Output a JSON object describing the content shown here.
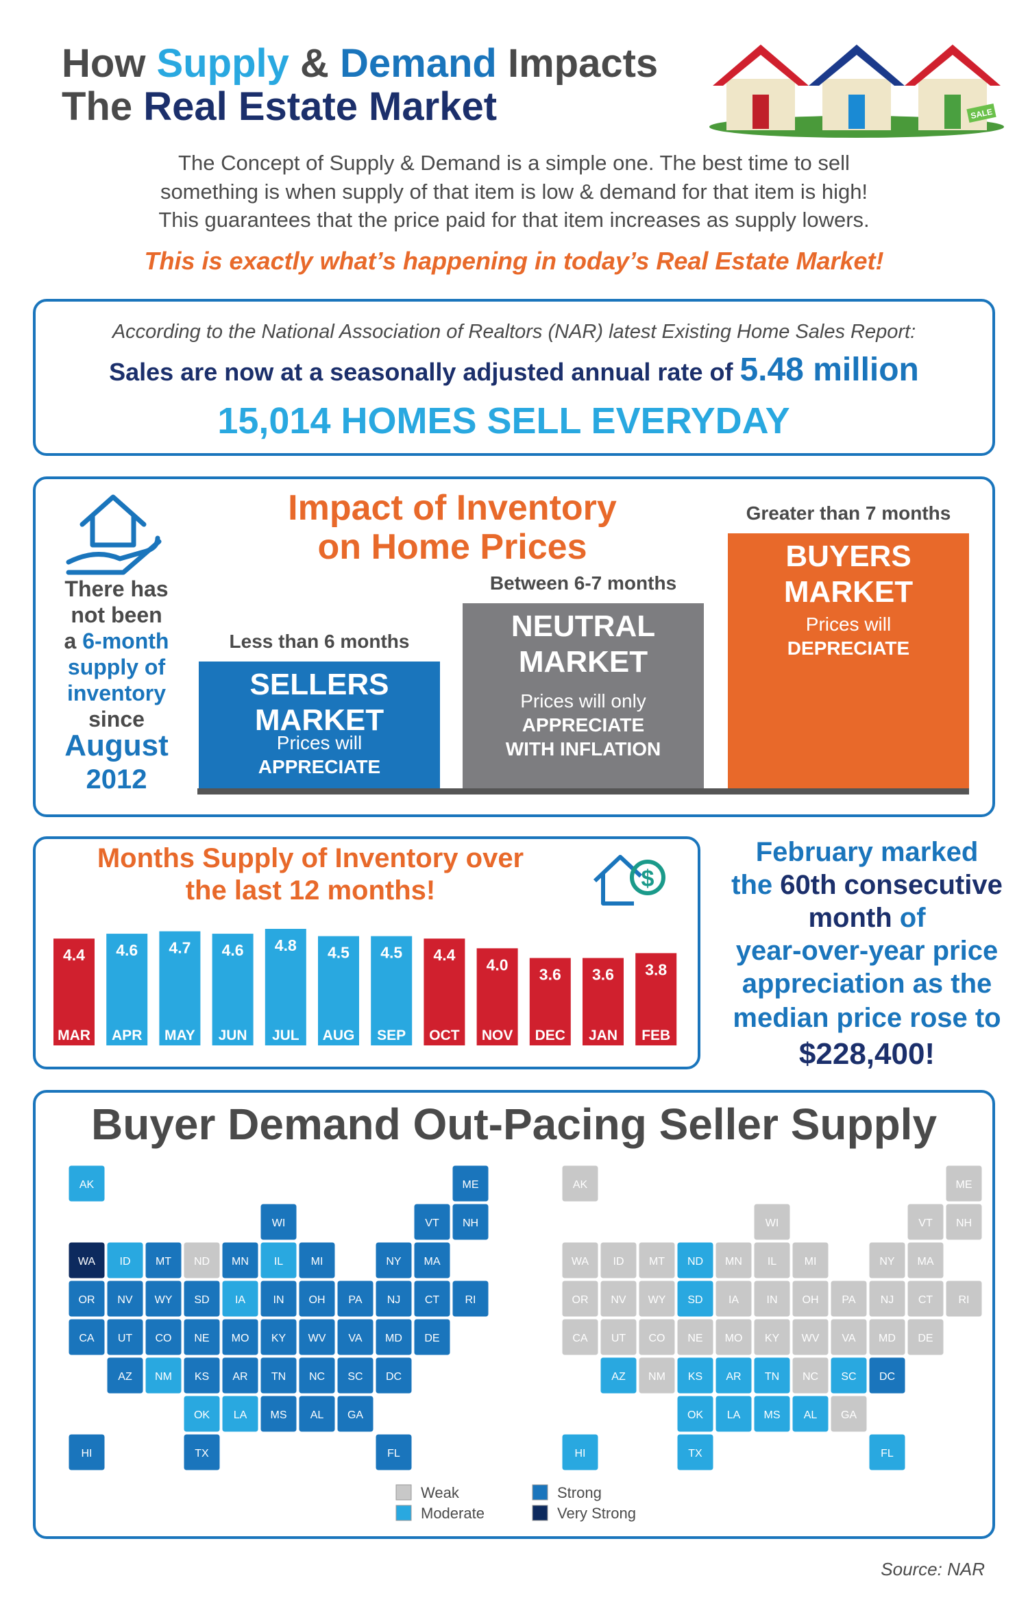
{
  "header": {
    "title_line1": [
      "How ",
      "Supply",
      " & ",
      "Demand",
      " Impacts"
    ],
    "title_line2": [
      "The ",
      "Real Estate Market"
    ],
    "sale_sign": "SALE"
  },
  "intro": {
    "lines": [
      "The Concept of Supply & Demand is a simple one. The best time to sell",
      "something is when supply of that item is low & demand for that item is high!",
      "This guarantees that the price paid for that item increases as supply lowers."
    ],
    "highlight": "This is exactly what’s happening in today’s Real Estate Market!"
  },
  "sales": {
    "source_note": "According to the National Association of Realtors (NAR) latest Existing Home Sales Report:",
    "rate_text": "Sales are now at a seasonally adjusted annual rate of ",
    "rate_value": "5.48 million",
    "daily": "15,014 HOMES SELL EVERYDAY"
  },
  "inventory_impact": {
    "title": [
      "Impact of Inventory",
      "on Home Prices"
    ],
    "note": [
      [
        "There has"
      ],
      [
        "not been"
      ],
      [
        "a ",
        "6-month"
      ],
      [
        "supply of"
      ],
      [
        "inventory"
      ],
      [
        "since"
      ],
      [
        "August"
      ],
      [
        "2012"
      ]
    ],
    "markets": [
      {
        "range": "Less than 6 months",
        "name": [
          "SELLERS",
          "MARKET"
        ],
        "desc": [
          "Prices will",
          "APPRECIATE"
        ]
      },
      {
        "range": "Between 6-7 months",
        "name": [
          "NEUTRAL",
          "MARKET"
        ],
        "desc": [
          "Prices will only",
          "APPRECIATE",
          "WITH INFLATION"
        ]
      },
      {
        "range": "Greater than 7 months",
        "name": [
          "BUYERS",
          "MARKET"
        ],
        "desc": [
          "Prices will",
          "DEPRECIATE"
        ]
      }
    ]
  },
  "inventory_chart": {
    "type": "bar",
    "title": [
      "Months Supply of Inventory over",
      "the last 12 months!"
    ],
    "categories": [
      "MAR",
      "APR",
      "MAY",
      "JUN",
      "JUL",
      "AUG",
      "SEP",
      "OCT",
      "NOV",
      "DEC",
      "JAN",
      "FEB"
    ],
    "values": [
      4.4,
      4.6,
      4.7,
      4.6,
      4.8,
      4.5,
      4.5,
      4.4,
      4.0,
      3.6,
      3.6,
      3.8
    ],
    "value_labels": [
      "4.4",
      "4.6",
      "4.7",
      "4.6",
      "4.8",
      "4.5",
      "4.5",
      "4.4",
      "4.0",
      "3.6",
      "3.6",
      "3.8"
    ],
    "colors": [
      "#d0202e",
      "#29a8e0",
      "#29a8e0",
      "#29a8e0",
      "#29a8e0",
      "#29a8e0",
      "#29a8e0",
      "#d0202e",
      "#d0202e",
      "#d0202e",
      "#d0202e",
      "#d0202e"
    ]
  },
  "price_note": {
    "lines": [
      [
        "February marked"
      ],
      [
        "the ",
        "60th consecutive"
      ],
      [
        "month",
        " of"
      ],
      [
        "year-over-year price"
      ],
      [
        "appreciation as the"
      ],
      [
        "median price rose to"
      ],
      [
        "$228,400!"
      ]
    ]
  },
  "demand_maps": {
    "title": "Buyer Demand Out-Pacing Seller Supply",
    "states": [
      "AK",
      "ME",
      "WI",
      "VT",
      "NH",
      "WA",
      "ID",
      "MT",
      "ND",
      "MN",
      "IL",
      "MI",
      "NY",
      "MA",
      "OR",
      "NV",
      "WY",
      "SD",
      "IA",
      "IN",
      "OH",
      "PA",
      "NJ",
      "CT",
      "RI",
      "CA",
      "UT",
      "CO",
      "NE",
      "MO",
      "KY",
      "WV",
      "VA",
      "MD",
      "DE",
      "AZ",
      "NM",
      "KS",
      "AR",
      "TN",
      "NC",
      "SC",
      "DC",
      "OK",
      "LA",
      "MS",
      "AL",
      "GA",
      "HI",
      "TX",
      "FL"
    ],
    "maps": [
      {
        "levels": [
          "Moderate",
          "Strong",
          "Strong",
          "Strong",
          "Strong",
          "Very Strong",
          "Moderate",
          "Strong",
          "Weak",
          "Strong",
          "Moderate",
          "Strong",
          "Strong",
          "Strong",
          "Strong",
          "Strong",
          "Strong",
          "Strong",
          "Moderate",
          "Strong",
          "Strong",
          "Strong",
          "Strong",
          "Strong",
          "Strong",
          "Strong",
          "Strong",
          "Strong",
          "Strong",
          "Strong",
          "Strong",
          "Strong",
          "Strong",
          "Strong",
          "Strong",
          "Strong",
          "Moderate",
          "Strong",
          "Strong",
          "Strong",
          "Strong",
          "Strong",
          "Strong",
          "Moderate",
          "Moderate",
          "Strong",
          "Strong",
          "Strong",
          "Strong",
          "Strong",
          "Strong"
        ]
      },
      {
        "levels": [
          "Weak",
          "Weak",
          "Weak",
          "Weak",
          "Weak",
          "Weak",
          "Weak",
          "Weak",
          "Moderate",
          "Weak",
          "Weak",
          "Weak",
          "Weak",
          "Weak",
          "Weak",
          "Weak",
          "Weak",
          "Moderate",
          "Weak",
          "Weak",
          "Weak",
          "Weak",
          "Weak",
          "Weak",
          "Weak",
          "Weak",
          "Weak",
          "Weak",
          "Weak",
          "Weak",
          "Weak",
          "Weak",
          "Weak",
          "Weak",
          "Weak",
          "Moderate",
          "Weak",
          "Moderate",
          "Moderate",
          "Moderate",
          "Weak",
          "Moderate",
          "Strong",
          "Moderate",
          "Moderate",
          "Moderate",
          "Moderate",
          "Weak",
          "Moderate",
          "Moderate",
          "Moderate"
        ]
      }
    ],
    "legend": [
      {
        "name": "Weak",
        "color": "#c8c8c8"
      },
      {
        "name": "Moderate",
        "color": "#29a8e0"
      },
      {
        "name": "Strong",
        "color": "#1a75bc"
      },
      {
        "name": "Very Strong",
        "color": "#0d2a5e"
      }
    ]
  },
  "source": "Source: NAR"
}
